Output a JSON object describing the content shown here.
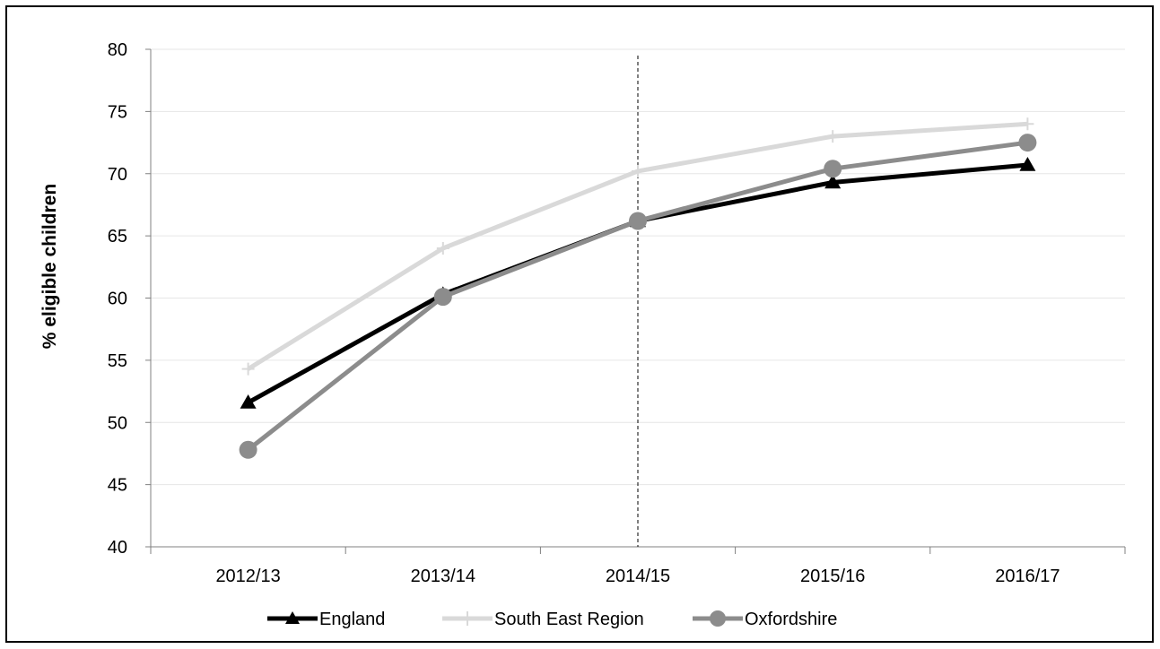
{
  "chart_data": {
    "type": "line",
    "title": "",
    "xlabel": "",
    "ylabel": "% eligible children",
    "categories": [
      "2012/13",
      "2013/14",
      "2014/15",
      "2015/16",
      "2016/17"
    ],
    "ylim": [
      40,
      80
    ],
    "yticks": [
      "40",
      "45",
      "50",
      "55",
      "60",
      "65",
      "70",
      "75",
      "80"
    ],
    "grid": true,
    "legend_position": "bottom",
    "reference_line_at": "2014/15",
    "series": [
      {
        "name": "England",
        "values": [
          51.6,
          60.3,
          66.2,
          69.3,
          70.7
        ],
        "color": "#000000",
        "marker": "triangle"
      },
      {
        "name": "South East Region",
        "values": [
          54.3,
          64.0,
          70.2,
          73.0,
          74.0
        ],
        "color": "#d9d9d9",
        "marker": "plus"
      },
      {
        "name": "Oxfordshire",
        "values": [
          47.8,
          60.1,
          66.2,
          70.4,
          72.5
        ],
        "color": "#8c8c8c",
        "marker": "circle"
      }
    ]
  }
}
